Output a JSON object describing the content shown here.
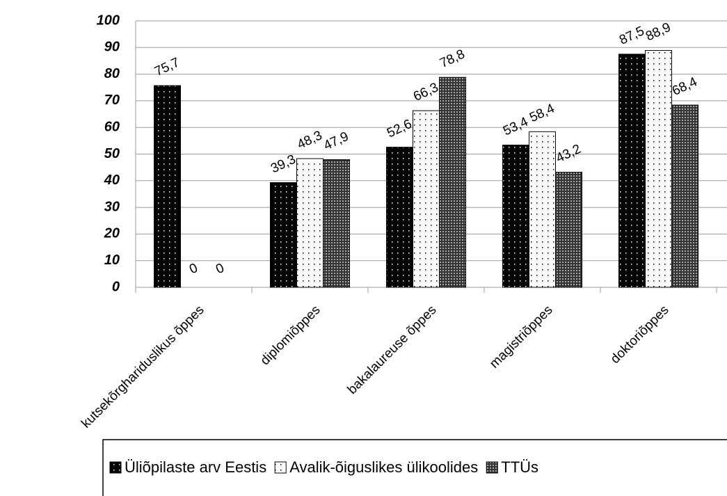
{
  "chart_data": {
    "type": "bar",
    "categories": [
      "kutsekõrghariduslikus õppes",
      "diplomiõppes",
      "bakalaureuse õppes",
      "magistriõppes",
      "doktoriõppes"
    ],
    "series": [
      {
        "name": "Üliõpilaste arv Eestis",
        "color": "#000000",
        "values": [
          75.7,
          39.3,
          52.6,
          53.4,
          87.5
        ],
        "value_labels": [
          "75,7",
          "39,3",
          "52,6",
          "53,4",
          "87,5"
        ]
      },
      {
        "name": "Avalik-õiguslikes ülikoolides",
        "color": "#ffffff",
        "values": [
          0,
          48.3,
          66.3,
          58.4,
          88.9
        ],
        "value_labels": [
          "0",
          "48,3",
          "66,3",
          "58,4",
          "88,9"
        ]
      },
      {
        "name": "TTÜs",
        "color": "#333333",
        "values": [
          0,
          47.9,
          78.8,
          43.2,
          68.4
        ],
        "value_labels": [
          "0",
          "47,9",
          "78,8",
          "43,2",
          "68,4"
        ]
      }
    ],
    "ylim": [
      0,
      100
    ],
    "yticks": [
      0,
      10,
      20,
      30,
      40,
      50,
      60,
      70,
      80,
      90,
      100
    ],
    "grid": true
  }
}
